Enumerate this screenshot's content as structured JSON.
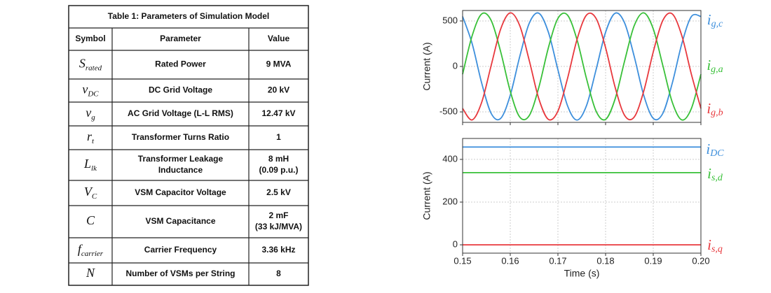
{
  "table": {
    "title": "Table 1: Parameters of Simulation Model",
    "columns": [
      "Symbol",
      "Parameter",
      "Value"
    ],
    "rows": [
      {
        "symbol": {
          "base": "S",
          "sub": "rated"
        },
        "parameter": [
          "Rated Power"
        ],
        "value": [
          "9 MVA"
        ]
      },
      {
        "symbol": {
          "base": "v",
          "sub": "DC"
        },
        "parameter": [
          "DC Grid Voltage"
        ],
        "value": [
          "20 kV"
        ]
      },
      {
        "symbol": {
          "base": "v",
          "sub": "g"
        },
        "parameter": [
          "AC Grid Voltage (L-L RMS)"
        ],
        "value": [
          "12.47 kV"
        ]
      },
      {
        "symbol": {
          "base": "r",
          "sub": "t"
        },
        "parameter": [
          "Transformer Turns Ratio"
        ],
        "value": [
          "1"
        ]
      },
      {
        "symbol": {
          "base": "L",
          "sub": "lk"
        },
        "parameter": [
          "Transformer Leakage",
          "Inductance"
        ],
        "value": [
          "8 mH",
          "(0.09 p.u.)"
        ]
      },
      {
        "symbol": {
          "base": "V",
          "sub": "C"
        },
        "parameter": [
          "VSM Capacitor Voltage"
        ],
        "value": [
          "2.5 kV"
        ]
      },
      {
        "symbol": {
          "base": "C"
        },
        "parameter": [
          "VSM Capacitance"
        ],
        "value": [
          "2 mF",
          "(33 kJ/MVA)"
        ]
      },
      {
        "symbol": {
          "base": "f",
          "sub": "carrier"
        },
        "parameter": [
          "Carrier Frequency"
        ],
        "value": [
          "3.36 kHz"
        ]
      },
      {
        "symbol": {
          "base": "N"
        },
        "parameter": [
          "Number of VSMs per String"
        ],
        "value": [
          "8"
        ]
      }
    ]
  },
  "chart_data": [
    {
      "type": "line",
      "ylabel": "Current (A)",
      "x": [
        0.15,
        0.152,
        0.154,
        0.156,
        0.158,
        0.16,
        0.162,
        0.164,
        0.166,
        0.168,
        0.17,
        0.172,
        0.174,
        0.176,
        0.178,
        0.18,
        0.182,
        0.184,
        0.186,
        0.188,
        0.19,
        0.192,
        0.194,
        0.196,
        0.198,
        0.2
      ],
      "xlim": [
        0.15,
        0.2
      ],
      "xticks": [
        0.15,
        0.16,
        0.17,
        0.18,
        0.19,
        0.2
      ],
      "xtick_labels": false,
      "ylim": [
        -615,
        615
      ],
      "yticks": [
        500,
        0,
        -500
      ],
      "grid": true,
      "smooth": true,
      "series": [
        {
          "name": {
            "base": "i",
            "sub": "g,c"
          },
          "color": "#3d8fdc",
          "values": [
            549,
            251,
            -182,
            -517,
            -571,
            -316,
            111,
            477,
            585,
            376,
            -37,
            -430,
            -590,
            -430,
            -37,
            376,
            585,
            477,
            111,
            -316,
            -571,
            -517,
            -182,
            251,
            549,
            549
          ]
        },
        {
          "name": {
            "base": "i",
            "sub": "g,a"
          },
          "color": "#38c038",
          "values": [
            -86,
            337,
            577,
            505,
            159,
            -273,
            -557,
            -539,
            -229,
            206,
            528,
            565,
            295,
            -135,
            -491,
            -582,
            -357,
            62,
            447,
            589,
            413,
            12,
            -395,
            -588,
            -462,
            -86
          ]
        },
        {
          "name": {
            "base": "i",
            "sub": "g,b"
          },
          "color": "#e8383d",
          "values": [
            -462,
            -588,
            -395,
            12,
            413,
            589,
            447,
            62,
            -357,
            -582,
            -491,
            -135,
            295,
            565,
            528,
            206,
            -229,
            -539,
            -557,
            -273,
            159,
            505,
            577,
            337,
            -86,
            -462
          ]
        }
      ]
    },
    {
      "type": "line",
      "ylabel": "Current (A)",
      "xlabel": "Time (s)",
      "x": [
        0.15,
        0.2
      ],
      "xlim": [
        0.15,
        0.2
      ],
      "xticks": [
        0.15,
        0.16,
        0.17,
        0.18,
        0.19,
        {
          "value": 0.2,
          "label": "0.20"
        }
      ],
      "xtick_labels": true,
      "ylim": [
        -39,
        498
      ],
      "yticks": [
        0,
        200,
        400
      ],
      "grid": true,
      "smooth": false,
      "series": [
        {
          "name": {
            "base": "i",
            "sub": "DC"
          },
          "color": "#3d8fdc",
          "values": [
            458,
            458
          ]
        },
        {
          "name": {
            "base": "i",
            "sub": "s,d"
          },
          "color": "#38c038",
          "values": [
            338,
            338
          ]
        },
        {
          "name": {
            "base": "i",
            "sub": "s,q"
          },
          "color": "#e8383d",
          "values": [
            0,
            0
          ]
        }
      ]
    }
  ]
}
